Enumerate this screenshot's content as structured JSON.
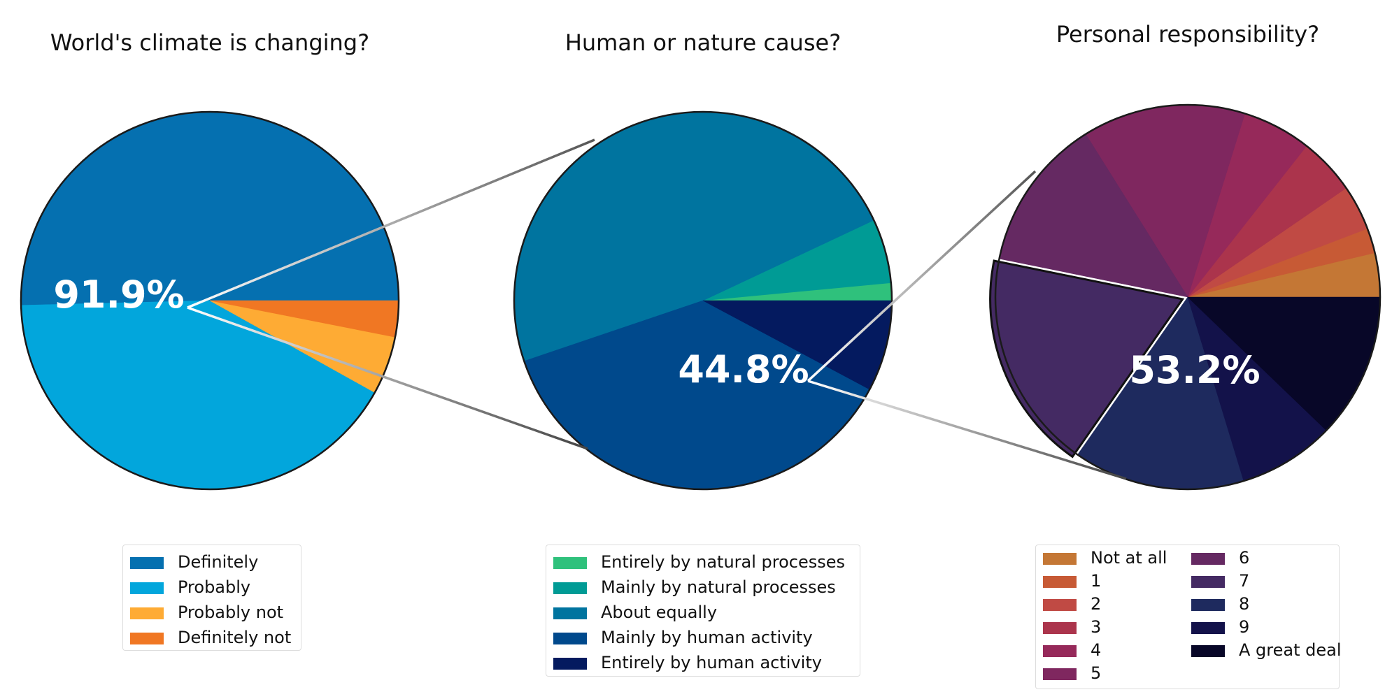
{
  "chart_data": [
    {
      "type": "pie",
      "title": "World's climate is changing?",
      "categories": [
        "Definitely",
        "Probably",
        "Probably not",
        "Definitely not"
      ],
      "values": [
        50.4,
        41.5,
        5.0,
        3.1
      ],
      "colors": [
        "#0570b0",
        "#02a6dc",
        "#feab34",
        "#f07723"
      ],
      "highlight_label": "91.9%",
      "exploded": []
    },
    {
      "type": "pie",
      "title": "Human or nature cause?",
      "categories": [
        "Entirely by natural processes",
        "Mainly by natural processes",
        "About equally",
        "Mainly by human activity",
        "Entirely by human activity"
      ],
      "values": [
        1.5,
        5.5,
        48.2,
        37.0,
        7.8
      ],
      "colors": [
        "#2fc17c",
        "#009b95",
        "#00749f",
        "#00498c",
        "#041a5f"
      ],
      "highlight_label": "44.8%",
      "exploded": []
    },
    {
      "type": "pie",
      "title": "Personal responsibility?",
      "categories": [
        "Not at all",
        "1",
        "2",
        "3",
        "4",
        "5",
        "6",
        "7",
        "8",
        "9",
        "A great deal"
      ],
      "values": [
        3.7,
        2.1,
        3.8,
        4.8,
        5.8,
        13.7,
        12.9,
        18.5,
        14.4,
        8.1,
        12.2
      ],
      "colors": [
        "#c47735",
        "#c75a35",
        "#c04a44",
        "#ab344c",
        "#96295a",
        "#7f275f",
        "#652962",
        "#442a63",
        "#1e2a5e",
        "#13124a",
        "#080728"
      ],
      "highlight_label": "53.2%",
      "exploded": [
        "7"
      ]
    }
  ]
}
